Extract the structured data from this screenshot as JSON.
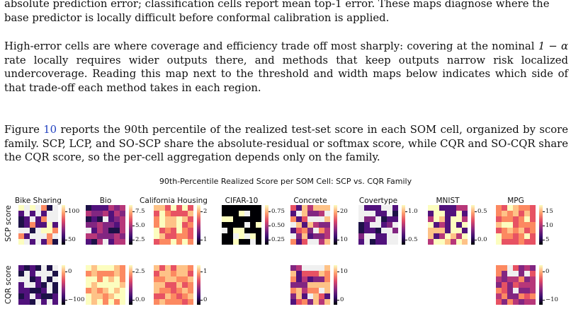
{
  "text": {
    "para0_line1": "absolute prediction error; classification cells report mean top-1 error. These maps diagnose where the",
    "para0_line2": "base predictor is locally difficult before conformal calibration is applied.",
    "para1_a": "High-error cells are where coverage and efficiency trade off most sharply: covering at the nominal",
    "para1_math": "1 − α",
    "para1_b": " rate locally requires wider outputs there, and methods that keep outputs narrow risk localized undercoverage. Reading this map next to the threshold and width maps below indicates which side of that trade-off each method takes in each region.",
    "para2_a": "Figure ",
    "para2_ref": "10",
    "para2_b": " reports the 90th percentile of the realized test-set score in each SOM cell, organized by score family. SCP, LCP, and SO-SCP share the absolute-residual or softmax score, while CQR and SO-CQR share the CQR score, so the per-cell aggregation depends only on the family."
  },
  "figure": {
    "title": "90th-Percentile Realized Score per SOM Cell: SCP vs. CQR Family",
    "row_labels": [
      "SCP score",
      "CQR score"
    ],
    "panels": [
      {
        "name": "Bike Sharing",
        "scp_ticks": [
          "100",
          "50"
        ],
        "cqr_ticks": [
          "0",
          "−100"
        ],
        "has_cqr": true
      },
      {
        "name": "Bio",
        "scp_ticks": [
          "7.5",
          "5.0",
          "2.5"
        ],
        "cqr_ticks": [
          "2.5",
          "0.0"
        ],
        "has_cqr": true
      },
      {
        "name": "California Housing",
        "scp_ticks": [
          "2",
          "1"
        ],
        "cqr_ticks": [
          "1",
          "0"
        ],
        "has_cqr": true
      },
      {
        "name": "CIFAR-10",
        "scp_ticks": [
          "0.75",
          "0.50",
          "0.25"
        ],
        "cqr_ticks": [],
        "has_cqr": false
      },
      {
        "name": "Concrete",
        "scp_ticks": [
          "20",
          "10"
        ],
        "cqr_ticks": [
          "10",
          "0"
        ],
        "has_cqr": true
      },
      {
        "name": "Covertype",
        "scp_ticks": [
          "1.0",
          "0.5"
        ],
        "cqr_ticks": [],
        "has_cqr": false
      },
      {
        "name": "MNIST",
        "scp_ticks": [
          "0.5",
          "0.0"
        ],
        "cqr_ticks": [],
        "has_cqr": false
      },
      {
        "name": "MPG",
        "scp_ticks": [
          "15",
          "10",
          "5"
        ],
        "cqr_ticks": [
          "0",
          "−10"
        ],
        "has_cqr": true
      }
    ],
    "colormap": "magma"
  }
}
